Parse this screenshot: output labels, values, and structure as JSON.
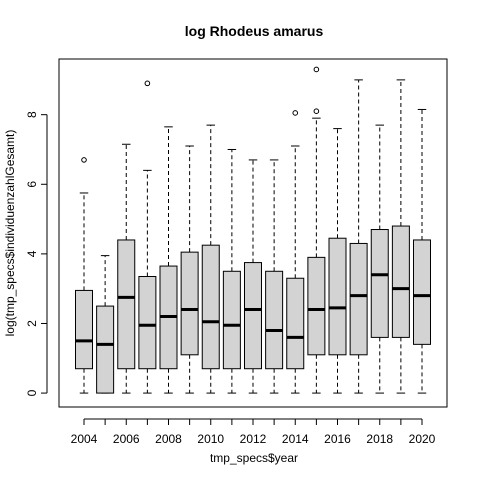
{
  "chart_data": {
    "type": "boxplot",
    "title": "log Rhodeus amarus",
    "xlabel": "tmp_specs$year",
    "ylabel": "log(tmp_specs$individuenzahlGesamt)",
    "box_fill": "#d3d3d3",
    "ylim": [
      -0.4,
      9.6
    ],
    "yticks": [
      0,
      2,
      4,
      6,
      8
    ],
    "xtick_labels": [
      "2004",
      "2006",
      "2008",
      "2010",
      "2012",
      "2014",
      "2016",
      "2018",
      "2020"
    ],
    "categories": [
      "2004",
      "2005",
      "2006",
      "2007",
      "2008",
      "2009",
      "2010",
      "2011",
      "2012",
      "2013",
      "2014",
      "2015",
      "2016",
      "2017",
      "2018",
      "2019",
      "2020"
    ],
    "boxes": [
      {
        "year": "2004",
        "min": 0.0,
        "q1": 0.7,
        "median": 1.5,
        "q3": 2.95,
        "max": 5.75,
        "outliers": [
          6.7
        ]
      },
      {
        "year": "2005",
        "min": 0.0,
        "q1": 0.0,
        "median": 1.4,
        "q3": 2.5,
        "max": 3.95,
        "outliers": []
      },
      {
        "year": "2006",
        "min": 0.0,
        "q1": 0.7,
        "median": 2.75,
        "q3": 4.4,
        "max": 7.15,
        "outliers": []
      },
      {
        "year": "2007",
        "min": 0.0,
        "q1": 0.7,
        "median": 1.95,
        "q3": 3.35,
        "max": 6.4,
        "outliers": [
          8.9
        ]
      },
      {
        "year": "2008",
        "min": 0.0,
        "q1": 0.7,
        "median": 2.2,
        "q3": 3.65,
        "max": 7.65,
        "outliers": []
      },
      {
        "year": "2009",
        "min": 0.0,
        "q1": 1.1,
        "median": 2.4,
        "q3": 4.05,
        "max": 7.1,
        "outliers": []
      },
      {
        "year": "2010",
        "min": 0.0,
        "q1": 0.7,
        "median": 2.05,
        "q3": 4.25,
        "max": 7.7,
        "outliers": []
      },
      {
        "year": "2011",
        "min": 0.0,
        "q1": 0.7,
        "median": 1.95,
        "q3": 3.5,
        "max": 7.0,
        "outliers": []
      },
      {
        "year": "2012",
        "min": 0.0,
        "q1": 0.7,
        "median": 2.4,
        "q3": 3.75,
        "max": 6.7,
        "outliers": []
      },
      {
        "year": "2013",
        "min": 0.0,
        "q1": 0.7,
        "median": 1.8,
        "q3": 3.5,
        "max": 6.7,
        "outliers": []
      },
      {
        "year": "2014",
        "min": 0.0,
        "q1": 0.7,
        "median": 1.6,
        "q3": 3.3,
        "max": 7.1,
        "outliers": [
          8.05
        ]
      },
      {
        "year": "2015",
        "min": 0.0,
        "q1": 1.1,
        "median": 2.4,
        "q3": 3.9,
        "max": 7.9,
        "outliers": [
          8.1,
          9.3
        ]
      },
      {
        "year": "2016",
        "min": 0.0,
        "q1": 1.1,
        "median": 2.45,
        "q3": 4.45,
        "max": 7.6,
        "outliers": []
      },
      {
        "year": "2017",
        "min": 0.0,
        "q1": 1.1,
        "median": 2.8,
        "q3": 4.3,
        "max": 9.0,
        "outliers": []
      },
      {
        "year": "2018",
        "min": 0.0,
        "q1": 1.6,
        "median": 3.4,
        "q3": 4.7,
        "max": 7.7,
        "outliers": []
      },
      {
        "year": "2019",
        "min": 0.0,
        "q1": 1.6,
        "median": 3.0,
        "q3": 4.8,
        "max": 9.0,
        "outliers": []
      },
      {
        "year": "2020",
        "min": 0.0,
        "q1": 1.4,
        "median": 2.8,
        "q3": 4.4,
        "max": 8.15,
        "outliers": []
      }
    ]
  }
}
